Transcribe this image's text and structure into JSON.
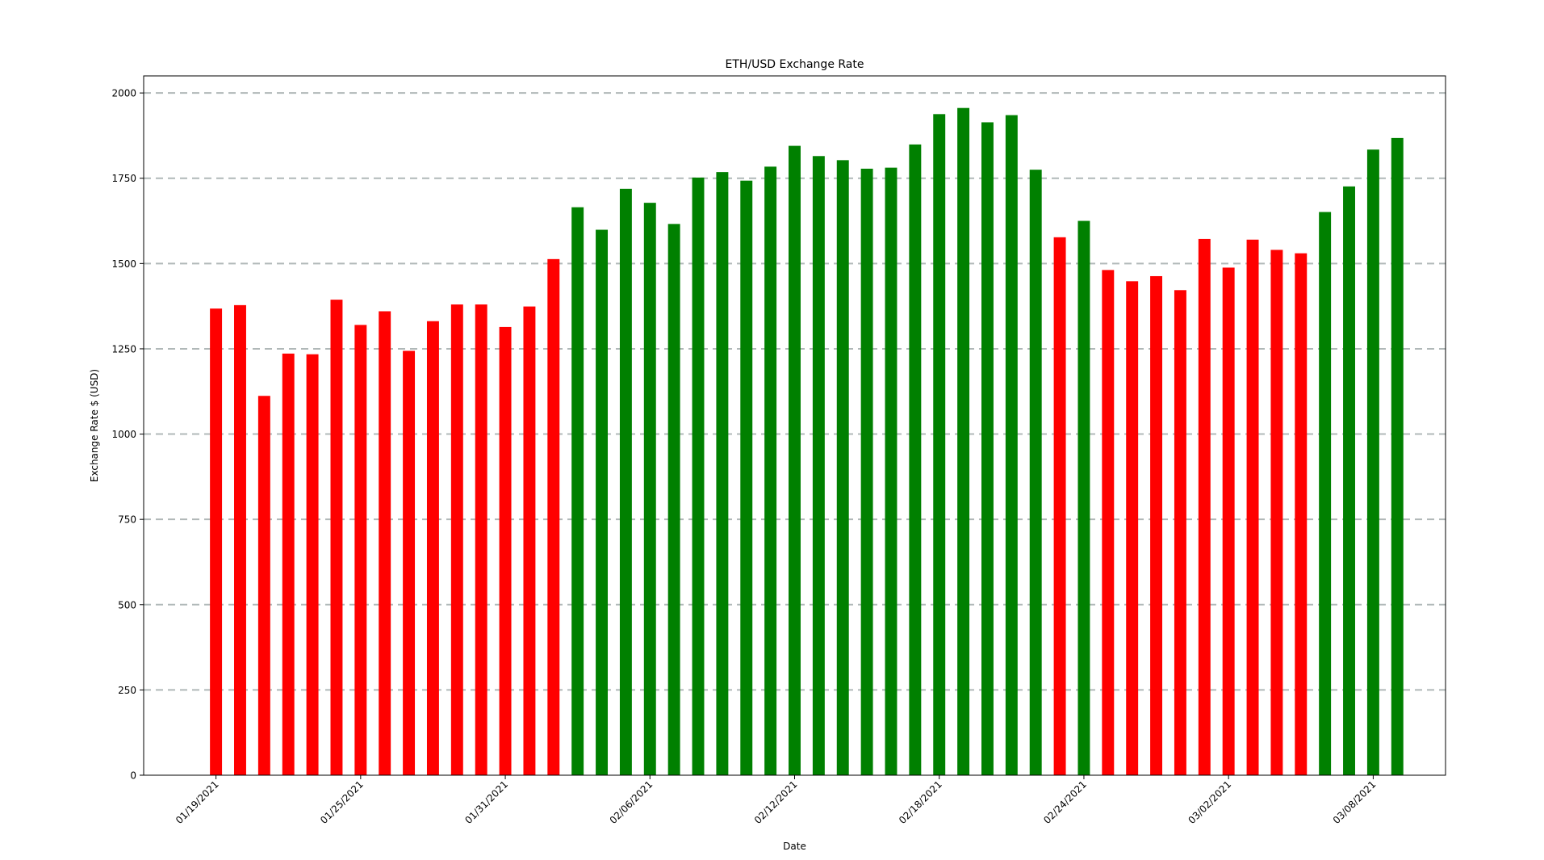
{
  "chart_data": {
    "type": "bar",
    "title": "ETH/USD Exchange Rate",
    "xlabel": "Date",
    "ylabel": "Exchange Rate $ (USD)",
    "ylim": [
      0,
      2050
    ],
    "xlim": [
      "01/16/2021",
      "03/11/2021"
    ],
    "grid": "horizontal dashed",
    "colors": {
      "down": "#ff0000",
      "up": "#008000",
      "grid": "#b0b8b8"
    },
    "y_ticks": [
      0,
      250,
      500,
      750,
      1000,
      1250,
      1500,
      1750,
      2000
    ],
    "x_tick_labels": [
      "01/19/2021",
      "01/25/2021",
      "01/31/2021",
      "02/06/2021",
      "02/12/2021",
      "02/18/2021",
      "02/24/2021",
      "03/02/2021",
      "03/08/2021"
    ],
    "points": [
      {
        "date": "01/19/2021",
        "value": 1368,
        "color": "red"
      },
      {
        "date": "01/20/2021",
        "value": 1378,
        "color": "red"
      },
      {
        "date": "01/21/2021",
        "value": 1112,
        "color": "red"
      },
      {
        "date": "01/22/2021",
        "value": 1236,
        "color": "red"
      },
      {
        "date": "01/23/2021",
        "value": 1234,
        "color": "red"
      },
      {
        "date": "01/24/2021",
        "value": 1394,
        "color": "red"
      },
      {
        "date": "01/25/2021",
        "value": 1320,
        "color": "red"
      },
      {
        "date": "01/26/2021",
        "value": 1360,
        "color": "red"
      },
      {
        "date": "01/27/2021",
        "value": 1244,
        "color": "red"
      },
      {
        "date": "01/28/2021",
        "value": 1331,
        "color": "red"
      },
      {
        "date": "01/29/2021",
        "value": 1380,
        "color": "red"
      },
      {
        "date": "01/30/2021",
        "value": 1380,
        "color": "red"
      },
      {
        "date": "01/31/2021",
        "value": 1314,
        "color": "red"
      },
      {
        "date": "02/01/2021",
        "value": 1374,
        "color": "red"
      },
      {
        "date": "02/02/2021",
        "value": 1513,
        "color": "red"
      },
      {
        "date": "02/03/2021",
        "value": 1665,
        "color": "green"
      },
      {
        "date": "02/04/2021",
        "value": 1599,
        "color": "green"
      },
      {
        "date": "02/05/2021",
        "value": 1719,
        "color": "green"
      },
      {
        "date": "02/06/2021",
        "value": 1678,
        "color": "green"
      },
      {
        "date": "02/07/2021",
        "value": 1616,
        "color": "green"
      },
      {
        "date": "02/08/2021",
        "value": 1752,
        "color": "green"
      },
      {
        "date": "02/09/2021",
        "value": 1768,
        "color": "green"
      },
      {
        "date": "02/10/2021",
        "value": 1743,
        "color": "green"
      },
      {
        "date": "02/11/2021",
        "value": 1784,
        "color": "green"
      },
      {
        "date": "02/12/2021",
        "value": 1845,
        "color": "green"
      },
      {
        "date": "02/13/2021",
        "value": 1815,
        "color": "green"
      },
      {
        "date": "02/14/2021",
        "value": 1803,
        "color": "green"
      },
      {
        "date": "02/15/2021",
        "value": 1778,
        "color": "green"
      },
      {
        "date": "02/16/2021",
        "value": 1781,
        "color": "green"
      },
      {
        "date": "02/17/2021",
        "value": 1849,
        "color": "green"
      },
      {
        "date": "02/18/2021",
        "value": 1938,
        "color": "green"
      },
      {
        "date": "02/19/2021",
        "value": 1956,
        "color": "green"
      },
      {
        "date": "02/20/2021",
        "value": 1914,
        "color": "green"
      },
      {
        "date": "02/21/2021",
        "value": 1935,
        "color": "green"
      },
      {
        "date": "02/22/2021",
        "value": 1775,
        "color": "green"
      },
      {
        "date": "02/23/2021",
        "value": 1577,
        "color": "red"
      },
      {
        "date": "02/24/2021",
        "value": 1625,
        "color": "green"
      },
      {
        "date": "02/25/2021",
        "value": 1481,
        "color": "red"
      },
      {
        "date": "02/26/2021",
        "value": 1448,
        "color": "red"
      },
      {
        "date": "02/27/2021",
        "value": 1463,
        "color": "red"
      },
      {
        "date": "02/28/2021",
        "value": 1422,
        "color": "red"
      },
      {
        "date": "03/01/2021",
        "value": 1572,
        "color": "red"
      },
      {
        "date": "03/02/2021",
        "value": 1488,
        "color": "red"
      },
      {
        "date": "03/03/2021",
        "value": 1570,
        "color": "red"
      },
      {
        "date": "03/04/2021",
        "value": 1540,
        "color": "red"
      },
      {
        "date": "03/05/2021",
        "value": 1530,
        "color": "red"
      },
      {
        "date": "03/06/2021",
        "value": 1651,
        "color": "green"
      },
      {
        "date": "03/07/2021",
        "value": 1726,
        "color": "green"
      },
      {
        "date": "03/08/2021",
        "value": 1834,
        "color": "green"
      },
      {
        "date": "03/09/2021",
        "value": 1868,
        "color": "green"
      }
    ]
  }
}
